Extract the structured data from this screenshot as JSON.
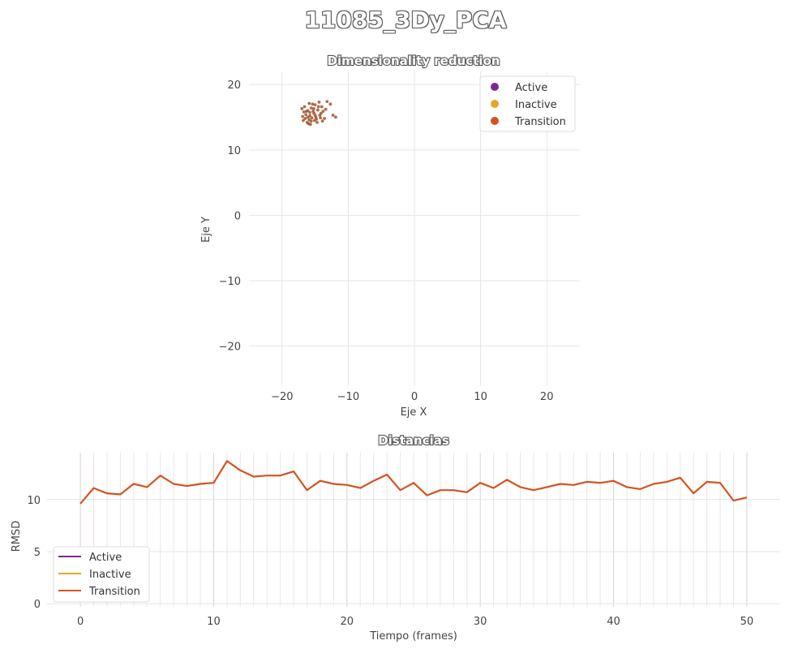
{
  "figure": {
    "suptitle": "11085_3Dy_PCA"
  },
  "chart_data": [
    {
      "type": "scatter",
      "title": "Dimensionality reduction",
      "xlabel": "Eje X",
      "ylabel": "Eje Y",
      "xlim": [
        -25,
        25
      ],
      "ylim": [
        -26,
        22
      ],
      "xticks": [
        -20,
        -10,
        0,
        10,
        20
      ],
      "yticks": [
        -20,
        -10,
        0,
        10,
        20
      ],
      "xtick_labels": [
        "−20",
        "−10",
        "0",
        "10",
        "20"
      ],
      "ytick_labels": [
        "−20",
        "−10",
        "0",
        "10",
        "20"
      ],
      "grid": true,
      "legend_position": "top-right",
      "legend": [
        {
          "name": "Active",
          "color": "#7b2a8a"
        },
        {
          "name": "Inactive",
          "color": "#e8a525"
        },
        {
          "name": "Transition",
          "color": "#d3531f"
        }
      ],
      "series": [
        {
          "name": "Transition",
          "color": "#a0522d",
          "points": [
            [
              -15.8,
              15.2
            ],
            [
              -15.5,
              14.9
            ],
            [
              -16.1,
              16.0
            ],
            [
              -15.2,
              15.6
            ],
            [
              -14.9,
              15.0
            ],
            [
              -16.4,
              15.4
            ],
            [
              -15.6,
              16.4
            ],
            [
              -14.6,
              16.1
            ],
            [
              -15.9,
              14.6
            ],
            [
              -16.6,
              16.6
            ],
            [
              -15.1,
              14.5
            ],
            [
              -14.3,
              15.3
            ],
            [
              -16.9,
              15.1
            ],
            [
              -15.4,
              17.0
            ],
            [
              -14.0,
              16.6
            ],
            [
              -16.2,
              14.2
            ],
            [
              -15.0,
              16.9
            ],
            [
              -13.8,
              15.9
            ],
            [
              -17.0,
              16.3
            ],
            [
              -15.7,
              13.9
            ],
            [
              -14.7,
              14.2
            ],
            [
              -16.5,
              14.8
            ],
            [
              -13.2,
              17.4
            ],
            [
              -12.7,
              17.0
            ],
            [
              -14.4,
              17.3
            ],
            [
              -16.8,
              14.5
            ],
            [
              -15.3,
              15.9
            ],
            [
              -13.6,
              14.8
            ],
            [
              -15.9,
              17.1
            ],
            [
              -14.1,
              15.6
            ],
            [
              -12.3,
              15.3
            ],
            [
              -11.9,
              15.0
            ],
            [
              -16.0,
              14.0
            ],
            [
              -15.2,
              16.3
            ],
            [
              -14.8,
              14.7
            ],
            [
              -16.3,
              15.9
            ],
            [
              -13.9,
              14.4
            ],
            [
              -15.6,
              14.4
            ],
            [
              -16.7,
              15.8
            ],
            [
              -14.5,
              16.6
            ],
            [
              -15.0,
              15.3
            ],
            [
              -13.4,
              16.2
            ],
            [
              -15.8,
              15.7
            ],
            [
              -14.2,
              14.9
            ],
            [
              -16.1,
              15.0
            ]
          ]
        }
      ]
    },
    {
      "type": "line",
      "title": "Distancias",
      "xlabel": "Tiempo (frames)",
      "ylabel": "RMSD",
      "xlim": [
        -2.5,
        52.5
      ],
      "ylim": [
        -0.3,
        14.5
      ],
      "xticks": [
        0,
        10,
        20,
        30,
        40,
        50
      ],
      "yticks": [
        0,
        5,
        10
      ],
      "grid": true,
      "legend_position": "bottom-left",
      "legend": [
        {
          "name": "Active",
          "color": "#7b2a8a"
        },
        {
          "name": "Inactive",
          "color": "#e8a525"
        },
        {
          "name": "Transition",
          "color": "#d3531f"
        }
      ],
      "x": [
        0,
        1,
        2,
        3,
        4,
        5,
        6,
        7,
        8,
        9,
        10,
        11,
        12,
        13,
        14,
        15,
        16,
        17,
        18,
        19,
        20,
        21,
        22,
        23,
        24,
        25,
        26,
        27,
        28,
        29,
        30,
        31,
        32,
        33,
        34,
        35,
        36,
        37,
        38,
        39,
        40,
        41,
        42,
        43,
        44,
        45,
        46,
        47,
        48,
        49,
        50
      ],
      "series": [
        {
          "name": "Transition",
          "color": "#d3531f",
          "values": [
            9.6,
            11.1,
            10.6,
            10.5,
            11.5,
            11.2,
            12.3,
            11.5,
            11.3,
            11.5,
            11.6,
            13.7,
            12.8,
            12.2,
            12.3,
            12.3,
            12.7,
            10.9,
            11.8,
            11.5,
            11.4,
            11.1,
            11.8,
            12.4,
            10.9,
            11.6,
            10.4,
            10.9,
            10.9,
            10.7,
            11.6,
            11.1,
            11.9,
            11.2,
            10.9,
            11.2,
            11.5,
            11.4,
            11.7,
            11.6,
            11.8,
            11.2,
            11.0,
            11.5,
            11.7,
            12.1,
            10.6,
            11.7,
            11.6,
            9.9,
            10.2
          ]
        }
      ]
    }
  ]
}
